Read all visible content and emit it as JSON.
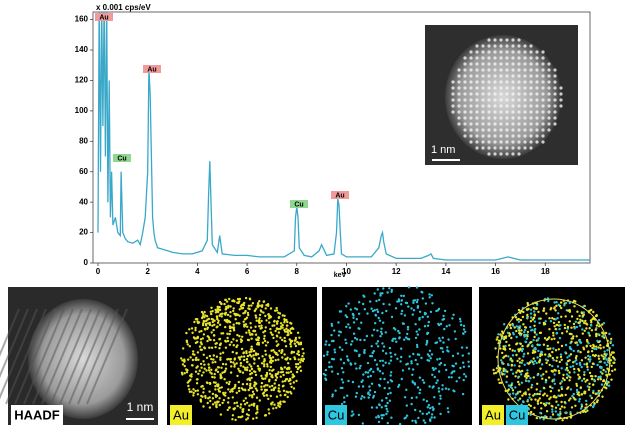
{
  "chart_data": {
    "type": "line",
    "y_unit": "x 0.001 cps/eV",
    "x_label": "keV",
    "x": [
      0,
      0.05,
      0.1,
      0.15,
      0.2,
      0.25,
      0.3,
      0.35,
      0.4,
      0.45,
      0.5,
      0.55,
      0.6,
      0.7,
      0.8,
      0.9,
      0.93,
      1.0,
      1.1,
      1.2,
      1.4,
      1.6,
      1.7,
      1.8,
      1.9,
      2.0,
      2.05,
      2.1,
      2.15,
      2.2,
      2.25,
      2.3,
      2.4,
      2.6,
      2.8,
      3.0,
      3.4,
      3.8,
      4.2,
      4.4,
      4.45,
      4.5,
      4.55,
      4.6,
      4.8,
      4.9,
      5.0,
      5.5,
      6.0,
      6.5,
      7.0,
      7.5,
      7.9,
      7.95,
      8.0,
      8.05,
      8.1,
      8.3,
      8.6,
      8.9,
      9.0,
      9.2,
      9.5,
      9.6,
      9.65,
      9.7,
      9.75,
      9.8,
      10.0,
      10.5,
      11.0,
      11.3,
      11.4,
      11.45,
      11.5,
      11.6,
      12.0,
      12.5,
      13.0,
      13.3,
      13.4,
      13.5,
      14.0,
      15.0,
      16.0,
      16.5,
      17.0,
      17.5,
      18.0,
      19.0,
      19.8
    ],
    "series": [
      {
        "color": "#3aa8c9",
        "values": [
          20,
          175,
          60,
          170,
          90,
          175,
          70,
          168,
          40,
          120,
          30,
          60,
          25,
          30,
          20,
          18,
          60,
          20,
          16,
          14,
          13,
          15,
          12,
          20,
          30,
          60,
          128,
          110,
          70,
          30,
          20,
          15,
          10,
          9,
          8,
          7,
          6,
          6,
          8,
          15,
          45,
          67,
          40,
          12,
          7,
          18,
          6,
          5,
          5,
          4,
          4,
          4,
          8,
          30,
          37,
          30,
          10,
          5,
          4,
          8,
          12,
          5,
          6,
          20,
          42,
          38,
          20,
          6,
          4,
          4,
          4,
          10,
          18,
          20,
          14,
          6,
          3,
          3,
          3,
          5,
          6,
          3,
          2,
          2,
          2,
          4,
          2,
          2,
          2,
          2,
          2
        ]
      }
    ],
    "xlim": [
      -0.2,
      19.8
    ],
    "ylim": [
      0,
      165
    ],
    "xticks": [
      0,
      2,
      4,
      6,
      8,
      10,
      12,
      14,
      16,
      18
    ],
    "yticks": [
      0,
      20,
      40,
      60,
      80,
      100,
      120,
      140,
      160
    ],
    "annotations": [
      {
        "text": "Au",
        "color": "#f29a9a"
      },
      {
        "text": "Au",
        "color": "#f29a9a"
      },
      {
        "text": "Cu",
        "color": "#8fd68f"
      },
      {
        "text": "Cu",
        "color": "#8fd68f"
      },
      {
        "text": "Au",
        "color": "#f29a9a"
      }
    ]
  },
  "inset": {
    "scale_label": "1 nm"
  },
  "panels": [
    {
      "labels": [
        {
          "text": "HAADF",
          "color": "#ffffff"
        }
      ],
      "scale_label": "1 nm"
    },
    {
      "labels": [
        {
          "text": "Au",
          "color": "#f2ee2a"
        }
      ],
      "dots": "#e8e42c"
    },
    {
      "labels": [
        {
          "text": "Cu",
          "color": "#2fc6e0"
        }
      ],
      "dots": "#2ec4dc"
    },
    {
      "labels": [
        {
          "text": "Au",
          "color": "#f2ee2a"
        },
        {
          "text": "Cu",
          "color": "#2fc6e0"
        }
      ],
      "dots": "#e8e42c",
      "dots2": "#2ec4dc"
    }
  ]
}
